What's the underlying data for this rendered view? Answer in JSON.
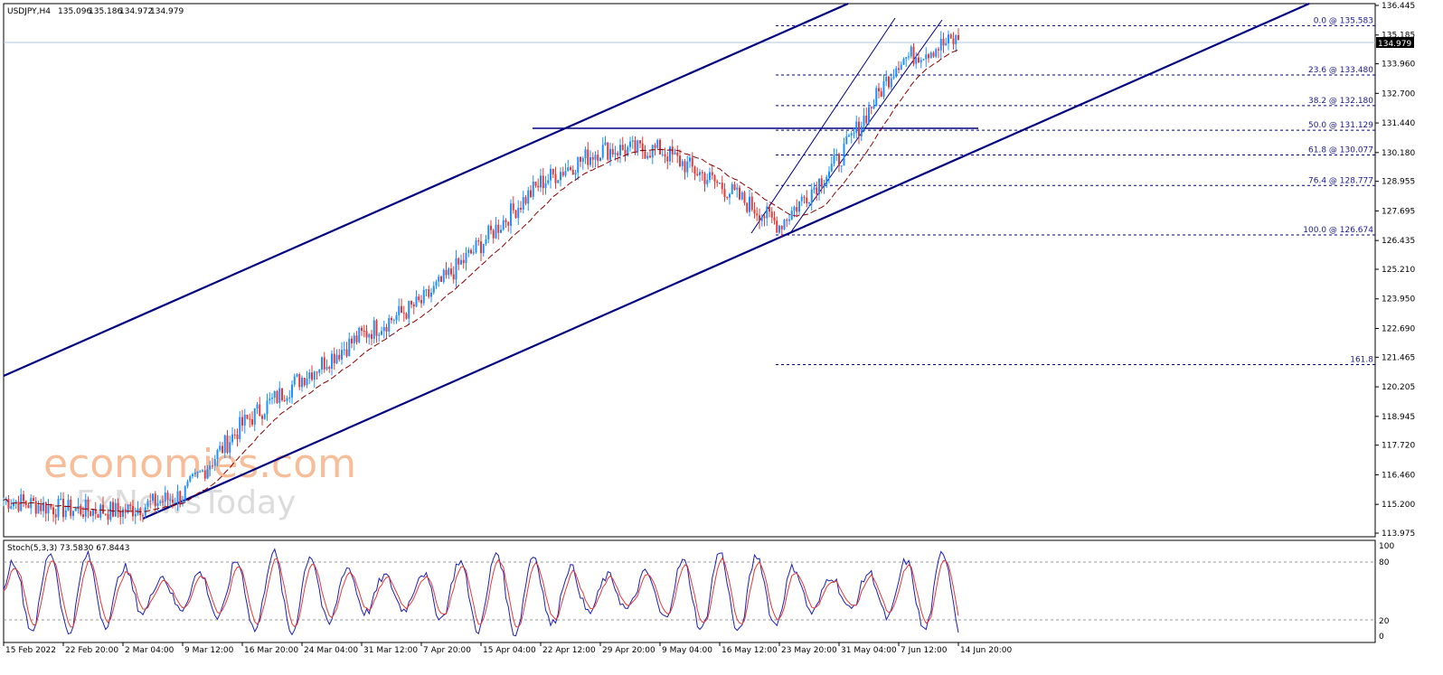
{
  "header": {
    "symbol": "USDJPY,H4",
    "open": "135.096",
    "high": "135.186",
    "low": "134.972",
    "close": "134.979"
  },
  "price_axis": {
    "ticks": [
      "136.445",
      "135.185",
      "133.960",
      "132.700",
      "131.440",
      "130.180",
      "128.955",
      "127.695",
      "126.435",
      "125.210",
      "123.950",
      "122.690",
      "121.465",
      "120.205",
      "118.945",
      "117.720",
      "116.460",
      "115.200",
      "113.975"
    ],
    "current_price": "134.979"
  },
  "fibonacci": [
    {
      "label": "0.0 @ 135.583",
      "price": 135.583
    },
    {
      "label": "23.6 @ 133.480",
      "price": 133.48
    },
    {
      "label": "38.2 @ 132.180",
      "price": 132.18
    },
    {
      "label": "50.0 @ 131.129",
      "price": 131.129
    },
    {
      "label": "61.8 @ 130.077",
      "price": 130.077
    },
    {
      "label": "76.4 @ 128.777",
      "price": 128.777
    },
    {
      "label": "100.0 @ 126.674",
      "price": 126.674
    },
    {
      "label": "161.8",
      "price": 121.15
    }
  ],
  "watermark": {
    "line1": "economies.com",
    "line2": "FxNewsToday"
  },
  "stochastic": {
    "label": "Stoch(5,3,3) 73.5830 67.8443",
    "ticks": [
      "100",
      "80",
      "20",
      "0"
    ]
  },
  "time_axis": [
    "15 Feb 2022",
    "22 Feb 20:00",
    "2 Mar 04:00",
    "9 Mar 12:00",
    "16 Mar 20:00",
    "24 Mar 04:00",
    "31 Mar 12:00",
    "7 Apr 20:00",
    "15 Apr 04:00",
    "22 Apr 12:00",
    "29 Apr 20:00",
    "9 May 04:00",
    "16 May 12:00",
    "23 May 20:00",
    "31 May 04:00",
    "7 Jun 12:00",
    "14 Jun 20:00"
  ],
  "chart_data": {
    "type": "line",
    "symbol": "USDJPY,H4",
    "ylim": [
      113.975,
      136.445
    ],
    "x": [
      "15 Feb 2022",
      "22 Feb 20:00",
      "2 Mar 04:00",
      "9 Mar 12:00",
      "16 Mar 20:00",
      "24 Mar 04:00",
      "31 Mar 12:00",
      "7 Apr 20:00",
      "15 Apr 04:00",
      "22 Apr 12:00",
      "29 Apr 20:00",
      "9 May 04:00",
      "16 May 12:00",
      "23 May 20:00",
      "31 May 04:00",
      "7 Jun 12:00",
      "14 Jun 20:00"
    ],
    "series": [
      {
        "values": [
          115.4,
          115.0,
          114.9,
          115.6,
          118.6,
          120.6,
          122.4,
          123.8,
          126.3,
          128.9,
          130.3,
          130.3,
          128.8,
          127.1,
          129.9,
          134.1,
          135.0
        ]
      }
    ],
    "stoch_ylim": [
      0,
      100
    ],
    "stoch_levels": [
      20,
      80
    ]
  },
  "colors": {
    "up_candle": "#1e90ff",
    "down_candle": "#e53935",
    "trend_line": "#000080",
    "ma_line": "#8b0000",
    "fib_line": "#000080",
    "stoch_main": "#1e1eb4",
    "stoch_signal": "#e53935",
    "watermark": "#f5a878",
    "watermark2": "#dcdcdc"
  }
}
